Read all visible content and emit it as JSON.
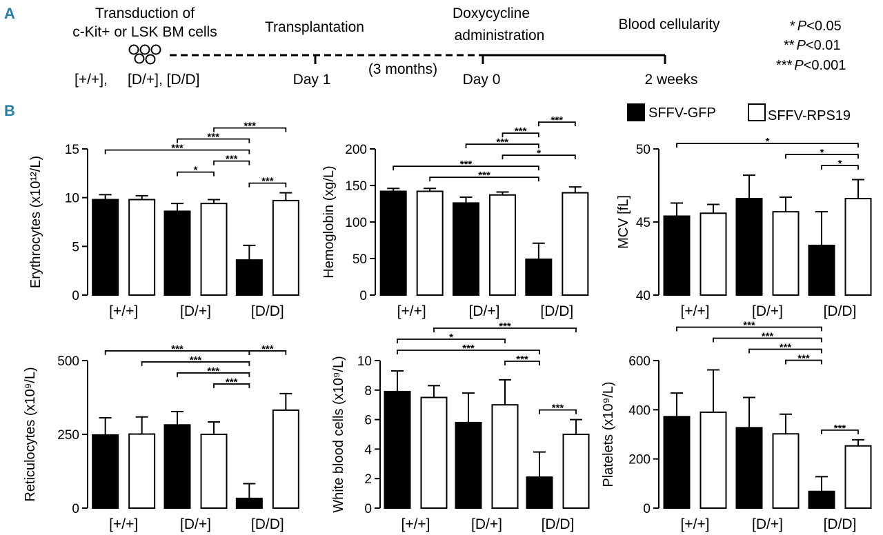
{
  "panel_a": {
    "letter": "A",
    "steps": [
      {
        "id": "transduction",
        "lines": [
          "Transduction of",
          "c-Kit+ or LSK BM cells"
        ]
      },
      {
        "id": "transplantation",
        "lines": [
          "Transplantation"
        ]
      },
      {
        "id": "doxycycline",
        "lines": [
          "Doxycycline",
          "administration"
        ]
      },
      {
        "id": "blood",
        "lines": [
          "Blood cellularity"
        ]
      }
    ],
    "genotypes_line": "[+/+],     [D/+], [D/D]",
    "timepoints": [
      "Day 1",
      "Day 0",
      "2 weeks"
    ],
    "interval_label": "(3 months)"
  },
  "significance_key": [
    {
      "stars": "*",
      "italic": "P",
      "rest": "<0.05"
    },
    {
      "stars": "**",
      "italic": "P",
      "rest": "<0.01"
    },
    {
      "stars": "***",
      "italic": "P",
      "rest": "<0.001"
    }
  ],
  "panel_b": {
    "letter": "B"
  },
  "legend": [
    {
      "label": "SFFV-GFP",
      "color": "#000000"
    },
    {
      "label": "SFFV-RPS19",
      "color": "#ffffff"
    }
  ],
  "colors": {
    "gfp": "#000000",
    "rps19": "#ffffff",
    "accent": "#2a7fa3"
  },
  "chart_data": [
    {
      "id": "erythrocytes",
      "type": "bar",
      "ylabel": "Erythrocytes (x10¹²/L)",
      "ylim": [
        0,
        15
      ],
      "yticks": [
        0,
        5,
        10,
        15
      ],
      "categories": [
        "[+/+]",
        "[D/+]",
        "[D/D]"
      ],
      "series": [
        {
          "name": "SFFV-GFP",
          "values": [
            9.8,
            8.6,
            3.6
          ],
          "errors": [
            0.5,
            0.8,
            1.5
          ]
        },
        {
          "name": "SFFV-RPS19",
          "values": [
            9.8,
            9.4,
            9.7
          ],
          "errors": [
            0.4,
            0.4,
            0.8
          ]
        }
      ],
      "significance": [
        {
          "from": [
            2,
            0
          ],
          "to": [
            2,
            1
          ],
          "label": "***",
          "level": 0
        },
        {
          "from": [
            1,
            0
          ],
          "to": [
            1,
            1
          ],
          "label": "*",
          "level": 1
        },
        {
          "from": [
            1,
            1
          ],
          "to": [
            2,
            0
          ],
          "label": "***",
          "level": 2
        },
        {
          "from": [
            0,
            0
          ],
          "to": [
            2,
            0
          ],
          "label": "***",
          "level": 3
        },
        {
          "from": [
            1,
            0
          ],
          "to": [
            2,
            0
          ],
          "label": "***",
          "level": 4
        },
        {
          "from": [
            1,
            1
          ],
          "to": [
            2,
            1
          ],
          "label": "***",
          "level": 5
        }
      ]
    },
    {
      "id": "hemoglobin",
      "type": "bar",
      "ylabel": "Hemoglobin (xg/L)",
      "ylim": [
        0,
        200
      ],
      "yticks": [
        0,
        50,
        100,
        150,
        200
      ],
      "categories": [
        "[+/+]",
        "[D/+]",
        "[D/D]"
      ],
      "series": [
        {
          "name": "SFFV-GFP",
          "values": [
            142,
            126,
            49
          ],
          "errors": [
            4,
            8,
            22
          ]
        },
        {
          "name": "SFFV-RPS19",
          "values": [
            142,
            137,
            140
          ],
          "errors": [
            4,
            4,
            8
          ]
        }
      ],
      "significance": [
        {
          "from": [
            0,
            1
          ],
          "to": [
            2,
            0
          ],
          "label": "***",
          "level": 0
        },
        {
          "from": [
            0,
            0
          ],
          "to": [
            2,
            0
          ],
          "label": "***",
          "level": 1
        },
        {
          "from": [
            1,
            1
          ],
          "to": [
            2,
            1
          ],
          "label": "*",
          "level": 2
        },
        {
          "from": [
            1,
            0
          ],
          "to": [
            2,
            0
          ],
          "label": "***",
          "level": 3
        },
        {
          "from": [
            1,
            1
          ],
          "to": [
            2,
            0
          ],
          "label": "***",
          "level": 4
        },
        {
          "from": [
            2,
            0
          ],
          "to": [
            2,
            1
          ],
          "label": "***",
          "level": 5
        }
      ]
    },
    {
      "id": "mcv",
      "type": "bar",
      "ylabel": "MCV [fL]",
      "ylim": [
        40,
        50
      ],
      "yticks": [
        40,
        45,
        50
      ],
      "categories": [
        "[+/+]",
        "[D/+]",
        "[D/D]"
      ],
      "series": [
        {
          "name": "SFFV-GFP",
          "values": [
            45.4,
            46.6,
            43.4
          ],
          "errors": [
            0.9,
            1.6,
            2.3
          ]
        },
        {
          "name": "SFFV-RPS19",
          "values": [
            45.6,
            45.7,
            46.6
          ],
          "errors": [
            0.6,
            1.0,
            1.3
          ]
        }
      ],
      "significance": [
        {
          "from": [
            2,
            0
          ],
          "to": [
            2,
            1
          ],
          "label": "*",
          "level": 0
        },
        {
          "from": [
            1,
            1
          ],
          "to": [
            2,
            1
          ],
          "label": "*",
          "level": 1
        },
        {
          "from": [
            0,
            0
          ],
          "to": [
            2,
            1
          ],
          "label": "*",
          "level": 2
        }
      ]
    },
    {
      "id": "reticulocytes",
      "type": "bar",
      "ylabel": "Reticulocytes (x10⁹/L)",
      "ylim": [
        0,
        500
      ],
      "yticks": [
        0,
        250,
        500
      ],
      "categories": [
        "[+/+]",
        "[D/+]",
        "[D/D]"
      ],
      "series": [
        {
          "name": "SFFV-GFP",
          "values": [
            248,
            282,
            33
          ],
          "errors": [
            58,
            45,
            50
          ]
        },
        {
          "name": "SFFV-RPS19",
          "values": [
            251,
            250,
            332
          ],
          "errors": [
            58,
            42,
            56
          ]
        }
      ],
      "significance": [
        {
          "from": [
            1,
            1
          ],
          "to": [
            2,
            0
          ],
          "label": "***",
          "level": 0
        },
        {
          "from": [
            1,
            0
          ],
          "to": [
            2,
            0
          ],
          "label": "***",
          "level": 1
        },
        {
          "from": [
            0,
            1
          ],
          "to": [
            2,
            0
          ],
          "label": "***",
          "level": 2
        },
        {
          "from": [
            0,
            0
          ],
          "to": [
            2,
            0
          ],
          "label": "***",
          "level": 3
        },
        {
          "from": [
            2,
            0
          ],
          "to": [
            2,
            1
          ],
          "label": "***",
          "level": 3
        }
      ]
    },
    {
      "id": "wbc",
      "type": "bar",
      "ylabel": "White blood cells (x10⁹/L)",
      "ylim": [
        0,
        10
      ],
      "yticks": [
        0,
        2,
        4,
        6,
        8,
        10
      ],
      "categories": [
        "[+/+]",
        "[D/+]",
        "[D/D]"
      ],
      "series": [
        {
          "name": "SFFV-GFP",
          "values": [
            7.9,
            5.8,
            2.1
          ],
          "errors": [
            1.4,
            2.0,
            1.7
          ]
        },
        {
          "name": "SFFV-RPS19",
          "values": [
            7.5,
            7.0,
            5.0
          ],
          "errors": [
            0.8,
            1.7,
            1.0
          ]
        }
      ],
      "significance": [
        {
          "from": [
            2,
            0
          ],
          "to": [
            2,
            1
          ],
          "label": "***",
          "level": -1
        },
        {
          "from": [
            1,
            1
          ],
          "to": [
            2,
            0
          ],
          "label": "***",
          "level": 0
        },
        {
          "from": [
            0,
            0
          ],
          "to": [
            2,
            0
          ],
          "label": "***",
          "level": 1
        },
        {
          "from": [
            0,
            0
          ],
          "to": [
            1,
            1
          ],
          "label": "*",
          "level": 2
        },
        {
          "from": [
            0,
            1
          ],
          "to": [
            2,
            1
          ],
          "label": "***",
          "level": 3
        }
      ]
    },
    {
      "id": "platelets",
      "type": "bar",
      "ylabel": "Platelets (x10⁹/L)",
      "ylim": [
        0,
        600
      ],
      "yticks": [
        0,
        200,
        400,
        600
      ],
      "categories": [
        "[+/+]",
        "[D/+]",
        "[D/D]"
      ],
      "series": [
        {
          "name": "SFFV-GFP",
          "values": [
            372,
            327,
            68
          ],
          "errors": [
            96,
            123,
            60
          ]
        },
        {
          "name": "SFFV-RPS19",
          "values": [
            390,
            302,
            253
          ],
          "errors": [
            172,
            80,
            25
          ]
        }
      ],
      "significance": [
        {
          "from": [
            2,
            0
          ],
          "to": [
            2,
            1
          ],
          "label": "***",
          "level": -1
        },
        {
          "from": [
            1,
            1
          ],
          "to": [
            2,
            0
          ],
          "label": "***",
          "level": 0
        },
        {
          "from": [
            1,
            0
          ],
          "to": [
            2,
            0
          ],
          "label": "***",
          "level": 1
        },
        {
          "from": [
            0,
            1
          ],
          "to": [
            2,
            0
          ],
          "label": "***",
          "level": 2
        },
        {
          "from": [
            0,
            0
          ],
          "to": [
            2,
            0
          ],
          "label": "***",
          "level": 3
        }
      ]
    }
  ]
}
